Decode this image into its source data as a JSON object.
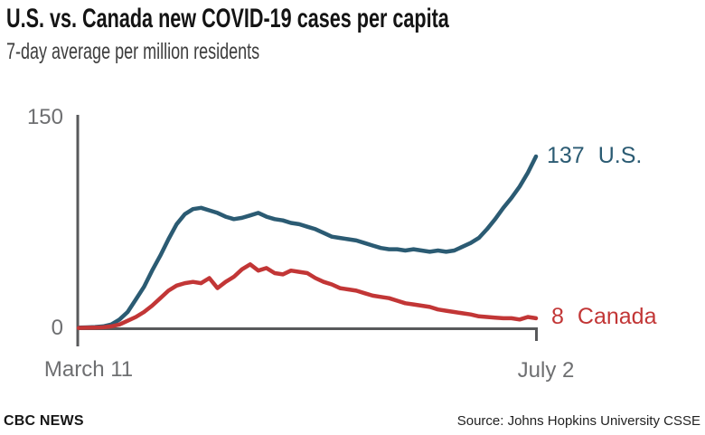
{
  "header": {
    "title": "U.S. vs. Canada new COVID-19 cases per capita",
    "subtitle": "7-day average per million residents"
  },
  "chart_data": {
    "type": "line",
    "title": "U.S. vs. Canada new COVID-19 cases per capita",
    "subtitle": "7-day average per million residents",
    "xlabel": "",
    "ylabel": "",
    "ylim": [
      0,
      150
    ],
    "yticks": [
      "0",
      "150"
    ],
    "x_start_label": "March 11",
    "x_end_label": "July 2",
    "grid": false,
    "legend_position": "end-of-line labels",
    "axis_color": "#58595b",
    "tick_label_color": "#6e6f71",
    "series": [
      {
        "name": "U.S.",
        "color": "#2b5b73",
        "end_label_value": "137",
        "values": [
          0.5,
          0.7,
          1,
          1.5,
          3,
          7,
          13,
          23,
          33,
          46,
          58,
          71,
          83,
          91,
          95,
          96,
          94,
          92,
          89,
          87,
          88,
          90,
          92,
          89,
          87,
          86,
          84,
          83,
          81,
          79,
          76,
          73,
          72,
          71,
          70,
          68,
          66,
          64,
          63,
          63,
          62,
          63,
          62,
          61,
          62,
          61,
          62,
          65,
          68,
          72,
          79,
          87,
          96,
          104,
          113,
          124,
          137
        ]
      },
      {
        "name": "Canada",
        "color": "#c23636",
        "end_label_value": "8",
        "values": [
          0.3,
          0.4,
          0.6,
          0.8,
          1.5,
          3,
          6,
          9,
          13,
          18,
          24,
          30,
          34,
          36,
          37,
          36,
          40,
          32,
          37,
          41,
          47,
          51,
          46,
          48,
          44,
          43,
          46,
          45,
          44,
          40,
          37,
          35,
          32,
          31,
          30,
          28,
          26,
          25,
          24,
          22,
          20,
          19,
          18,
          17,
          15,
          14,
          13,
          12,
          11,
          9.5,
          9,
          8.5,
          8,
          8,
          7,
          9,
          8
        ]
      }
    ]
  },
  "footer": {
    "brand": "CBC NEWS",
    "source": "Source: Johns Hopkins University CSSE"
  }
}
